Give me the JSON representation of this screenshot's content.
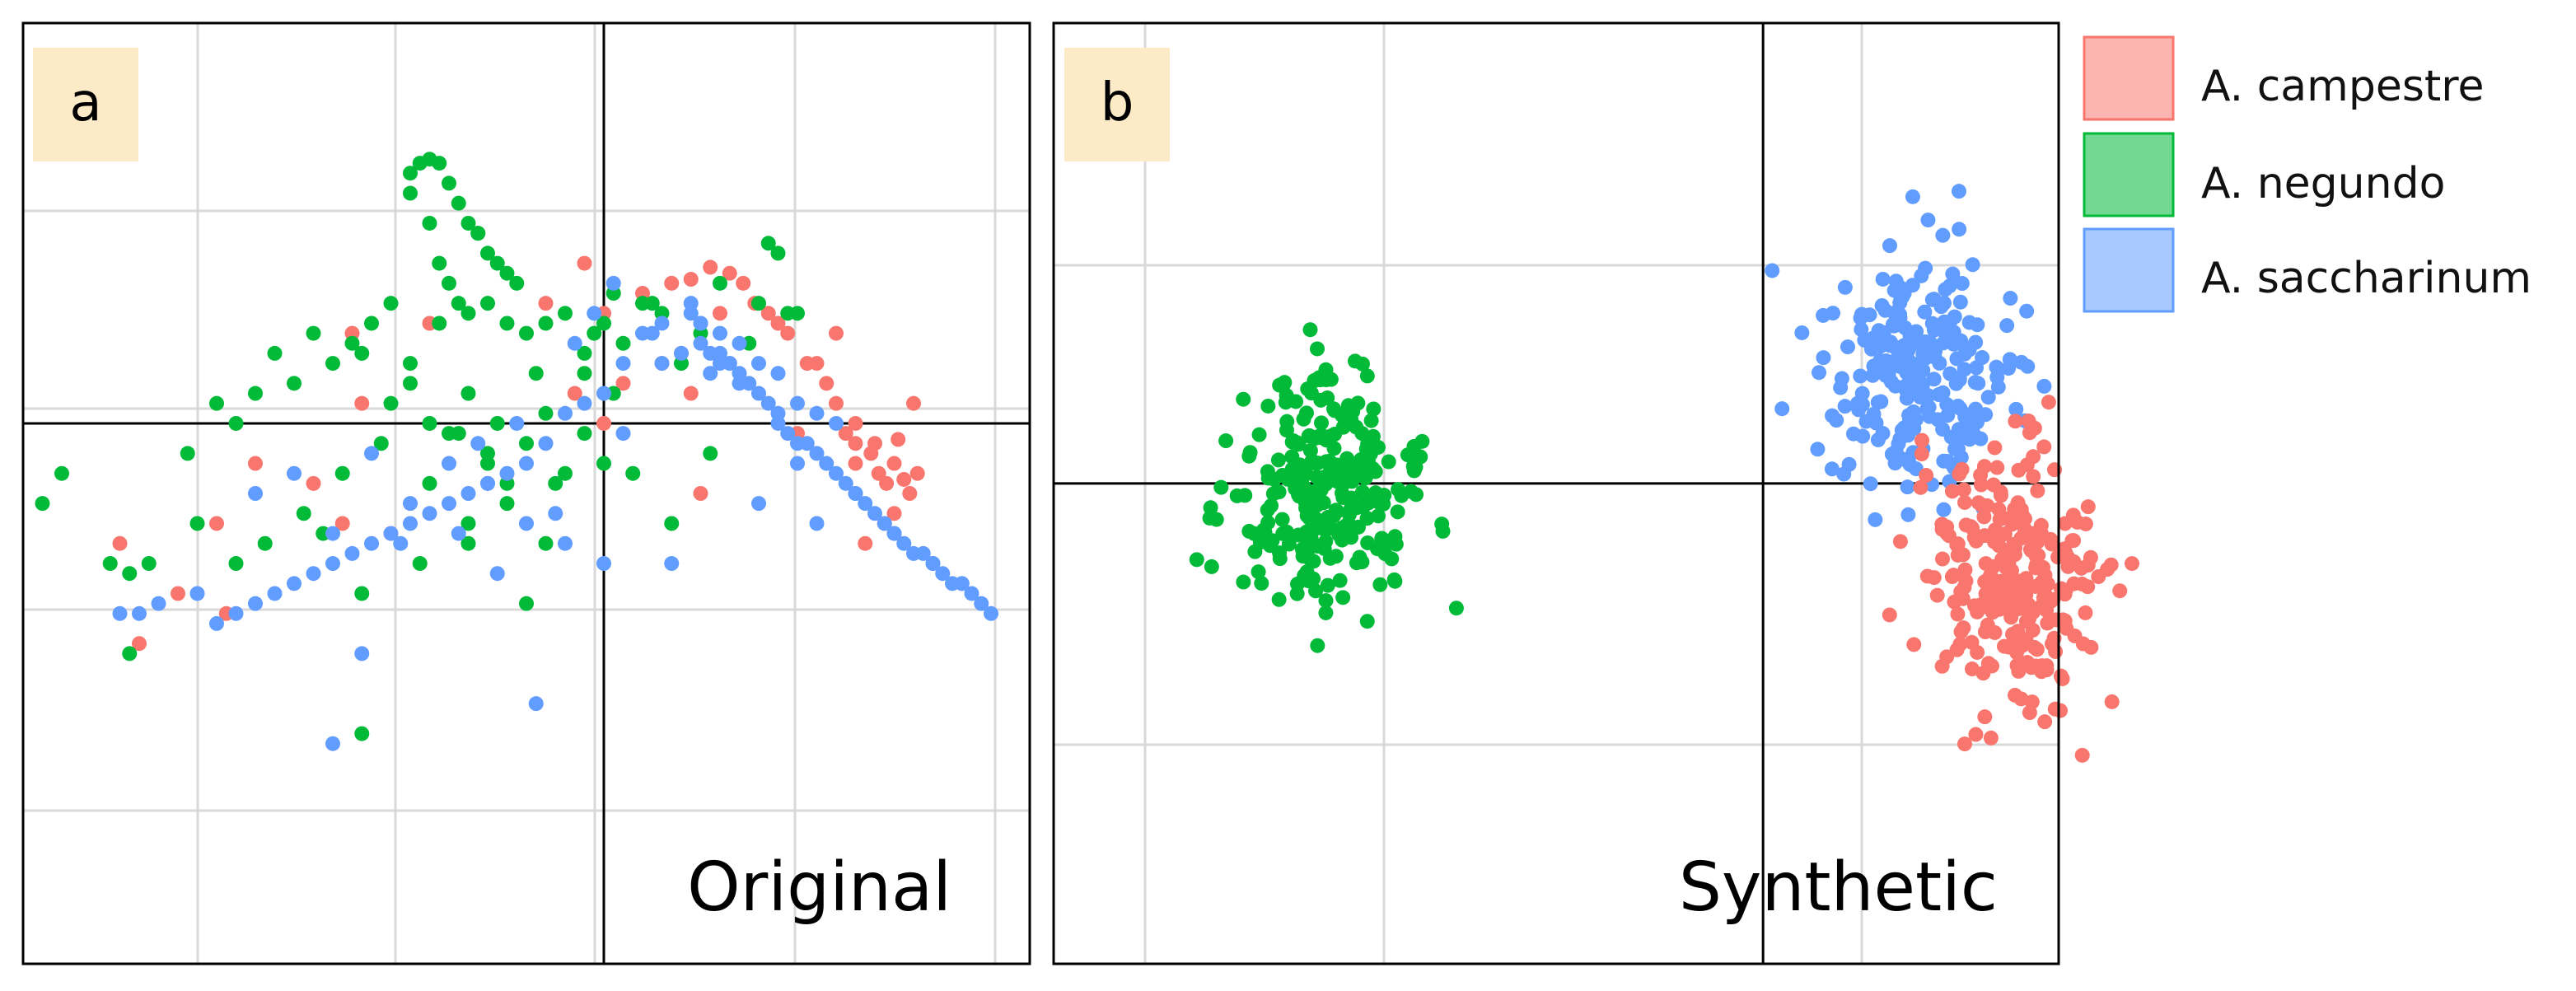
{
  "colors": {
    "campestre": "#F8766D",
    "negundo": "#00BA38",
    "saccharinum": "#619CFF",
    "label_bg": "#FDEBC8",
    "grid": "#D9D9D9",
    "axis": "#000000"
  },
  "legend": {
    "placement": "right",
    "items": [
      {
        "key": "campestre",
        "label": "A. campestre"
      },
      {
        "key": "negundo",
        "label": "A. negundo"
      },
      {
        "key": "saccharinum",
        "label": "A. saccharinum"
      }
    ]
  },
  "chart_data": [
    {
      "type": "scatter",
      "panel_label": "a",
      "caption": "Original",
      "title": "",
      "xlabel": "",
      "ylabel": "",
      "xlim": [
        -3.0,
        2.2
      ],
      "ylim": [
        -2.7,
        2.0
      ],
      "grid": true,
      "zero_lines": true,
      "series": [
        {
          "key": "campestre",
          "x": [
            0.35,
            0.45,
            0.55,
            0.65,
            0.72,
            0.78,
            0.85,
            0.95,
            1.05,
            1.15,
            1.2,
            1.25,
            1.3,
            1.3,
            1.38,
            1.42,
            1.46,
            1.5,
            1.55,
            1.58,
            1.62,
            1.5,
            1.45,
            1.35,
            1.4,
            1.52,
            1.6,
            1.3,
            1.2,
            1.1,
            0.9,
            0.6,
            0.4,
            0.2,
            -0.1,
            -0.3,
            -1.3,
            -1.5,
            -1.8,
            -2.0,
            -2.5,
            -2.2,
            -2.4,
            -1.95,
            -1.1,
            0.0,
            0.5,
            -1.25,
            -1.35,
            0.45,
            0.1,
            -0.15,
            0.0,
            1.0,
            0.3,
            -0.9
          ],
          "y": [
            0.7,
            0.72,
            0.78,
            0.75,
            0.7,
            0.6,
            0.55,
            0.45,
            0.3,
            0.2,
            0.1,
            -0.05,
            -0.1,
            -0.2,
            -0.15,
            -0.25,
            -0.3,
            -0.2,
            -0.28,
            -0.35,
            -0.25,
            -0.45,
            -0.5,
            -0.6,
            -0.1,
            -0.08,
            0.1,
            0.0,
            0.45,
            0.3,
            0.5,
            0.55,
            0.35,
            0.65,
            0.8,
            0.6,
            0.45,
            -0.3,
            -0.2,
            -0.5,
            -0.6,
            -0.85,
            -1.1,
            -0.95,
            -0.55,
            0.0,
            -0.35,
            0.1,
            -0.5,
            0.15,
            0.2,
            0.15,
            0.55,
            -0.05,
            0.3,
            0.5
          ]
        },
        {
          "key": "negundo",
          "x": [
            -1.0,
            -0.95,
            -0.9,
            -0.85,
            -0.8,
            -0.75,
            -0.7,
            -0.65,
            -0.6,
            -0.55,
            -0.5,
            -1.0,
            -0.9,
            -0.85,
            -0.8,
            -0.75,
            -0.7,
            -0.6,
            -0.5,
            -0.4,
            -0.3,
            -0.2,
            -0.1,
            0.0,
            0.1,
            0.2,
            0.3,
            0.4,
            0.5,
            0.6,
            0.8,
            0.9,
            0.95,
            -1.1,
            -1.2,
            -1.25,
            -1.3,
            -1.4,
            -1.5,
            -1.6,
            -1.7,
            -1.8,
            -1.9,
            -2.0,
            -1.1,
            -1.0,
            -0.9,
            -0.8,
            -0.7,
            -0.6,
            -0.5,
            -0.4,
            -0.3,
            -0.2,
            -0.1,
            0.0,
            -0.3,
            -0.5,
            -0.7,
            -0.9,
            -1.15,
            -1.35,
            -1.55,
            -1.75,
            -2.1,
            -2.35,
            -2.45,
            -2.55,
            -2.8,
            -2.9,
            -2.15,
            -1.25,
            -1.25,
            -0.4,
            -0.7,
            -0.95,
            -0.05,
            -0.1,
            -0.55,
            -0.75,
            0.35,
            0.15,
            0.05,
            -0.25,
            -1.0,
            -1.45,
            -1.9,
            -2.45,
            0.85,
            1.0,
            -0.45,
            0.05,
            0.25,
            0.55,
            0.75,
            -0.65,
            -0.85,
            -0.6,
            -0.35
          ],
          "y": [
            1.25,
            1.3,
            1.32,
            1.3,
            1.2,
            1.1,
            1.0,
            0.95,
            0.85,
            0.8,
            0.75,
            1.15,
            1.0,
            0.8,
            0.7,
            0.6,
            0.55,
            0.6,
            0.5,
            0.45,
            0.5,
            0.55,
            0.35,
            0.5,
            0.4,
            0.6,
            0.55,
            0.3,
            0.45,
            0.7,
            0.6,
            0.85,
            0.55,
            0.6,
            0.5,
            0.35,
            0.4,
            0.3,
            0.45,
            0.2,
            0.35,
            0.15,
            0.0,
            0.1,
            0.1,
            0.3,
            0.0,
            -0.05,
            0.15,
            -0.2,
            -0.3,
            -0.1,
            0.05,
            -0.25,
            -0.05,
            -0.2,
            -0.6,
            -0.4,
            -0.5,
            -0.3,
            -0.1,
            -0.25,
            -0.45,
            -0.6,
            -0.5,
            -0.7,
            -0.75,
            -0.7,
            -0.25,
            -0.4,
            -0.15,
            -0.85,
            -1.55,
            -0.9,
            -0.6,
            -0.7,
            0.45,
            0.25,
            0.0,
            -0.05,
            -0.5,
            -0.25,
            0.15,
            -0.3,
            0.2,
            -0.55,
            -0.7,
            -1.15,
            0.9,
            0.55,
            0.7,
            0.65,
            0.6,
            -0.15,
            0.4,
            0.95,
            0.5,
            -0.15,
            0.25
          ],
          "y_extra_note": ""
        },
        {
          "key": "saccharinum",
          "x": [
            0.3,
            0.4,
            0.5,
            0.55,
            0.6,
            0.65,
            0.7,
            0.75,
            0.8,
            0.85,
            0.9,
            0.95,
            1.0,
            1.05,
            1.1,
            1.15,
            1.2,
            1.25,
            1.3,
            1.35,
            1.4,
            1.45,
            1.5,
            1.55,
            1.6,
            1.65,
            1.7,
            1.75,
            1.8,
            1.85,
            1.9,
            1.95,
            2.0,
            0.5,
            0.6,
            0.7,
            0.8,
            0.9,
            1.0,
            1.1,
            1.2,
            0.3,
            0.2,
            0.1,
            0.0,
            -0.1,
            -0.2,
            -0.3,
            -0.4,
            -0.5,
            -0.6,
            -0.7,
            -0.8,
            -0.9,
            -1.0,
            -1.1,
            -1.2,
            -1.3,
            -1.4,
            -1.5,
            -1.6,
            -1.7,
            -1.8,
            -1.9,
            -2.0,
            -2.1,
            -2.3,
            -2.4,
            -2.5,
            0.0,
            -0.2,
            -0.4,
            -0.6,
            -0.8,
            -1.0,
            -1.2,
            -1.4,
            -1.6,
            -1.8,
            0.6,
            0.65,
            0.55,
            0.7,
            0.45,
            0.5,
            0.05,
            -0.15,
            -1.25,
            -1.4,
            -0.75,
            -0.35,
            0.35,
            0.8,
            1.0,
            1.3,
            1.5,
            0.9,
            1.1,
            1.7,
            1.85,
            0.45,
            0.25,
            -0.05,
            -0.45,
            -0.65,
            -1.05,
            -0.55,
            -0.25,
            0.1
          ],
          "y": [
            0.3,
            0.35,
            0.4,
            0.35,
            0.3,
            0.3,
            0.25,
            0.2,
            0.15,
            0.1,
            0.0,
            -0.05,
            -0.1,
            -0.1,
            -0.15,
            -0.2,
            -0.25,
            -0.3,
            -0.35,
            -0.4,
            -0.45,
            -0.5,
            -0.55,
            -0.6,
            -0.65,
            -0.65,
            -0.7,
            -0.75,
            -0.8,
            -0.8,
            -0.85,
            -0.9,
            -0.95,
            0.5,
            0.45,
            0.4,
            0.3,
            0.25,
            0.1,
            0.05,
            0.0,
            0.5,
            0.45,
            0.3,
            0.15,
            0.1,
            0.05,
            -0.1,
            -0.2,
            -0.25,
            -0.3,
            -0.35,
            -0.4,
            -0.45,
            -0.5,
            -0.55,
            -0.6,
            -0.65,
            -0.7,
            -0.75,
            -0.8,
            -0.85,
            -0.9,
            -0.95,
            -1.0,
            -0.85,
            -0.9,
            -0.95,
            -0.95,
            -0.7,
            -0.6,
            -0.5,
            -0.3,
            -0.2,
            -0.4,
            -0.15,
            -0.55,
            -0.25,
            -0.35,
            0.35,
            0.3,
            0.25,
            0.2,
            0.55,
            0.5,
            0.7,
            0.4,
            -1.15,
            -1.6,
            -0.55,
            -1.4,
            -0.7,
            -0.4,
            -0.2,
            -0.35,
            -0.55,
            0.05,
            -0.5,
            -0.7,
            -0.8,
            0.6,
            0.45,
            0.55,
            0.0,
            -0.1,
            -0.6,
            -0.75,
            -0.45,
            -0.05
          ]
        }
      ]
    },
    {
      "type": "scatter",
      "panel_label": "b",
      "caption": "Synthetic",
      "title": "",
      "xlabel": "",
      "ylabel": "",
      "xlim": [
        -4.8,
        2.0
      ],
      "ylim": [
        -2.4,
        2.3
      ],
      "grid": true,
      "zero_lines": true,
      "clusters": [
        {
          "key": "negundo",
          "center": [
            -3.0,
            -0.05
          ],
          "sd": [
            0.32,
            0.3
          ],
          "n": 260
        },
        {
          "key": "saccharinum",
          "center": [
            1.05,
            0.55
          ],
          "sd": [
            0.32,
            0.3
          ],
          "n": 240
        },
        {
          "key": "campestre",
          "center": [
            1.7,
            -0.5
          ],
          "sd": [
            0.28,
            0.35
          ],
          "n": 260
        }
      ]
    }
  ]
}
